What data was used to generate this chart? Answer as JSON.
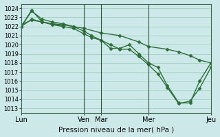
{
  "title": "Pression niveau de la mer( hPa )",
  "bg_color": "#cce8e8",
  "grid_color": "#99ccbb",
  "line_color": "#2d6e3a",
  "ylim": [
    1012.5,
    1024.5
  ],
  "yticks": [
    1013,
    1014,
    1015,
    1016,
    1017,
    1018,
    1019,
    1020,
    1021,
    1022,
    1023,
    1024
  ],
  "xtick_labels": [
    "Lun",
    "Ven",
    "Mar",
    "Mer",
    "Jeu"
  ],
  "xtick_positions": [
    0,
    0.33,
    0.42,
    0.67,
    1.0
  ],
  "lines": [
    {
      "x": [
        0.0,
        0.055,
        0.11,
        0.165,
        0.22,
        0.275,
        0.33,
        0.37,
        0.42,
        0.47,
        0.52,
        0.57,
        0.62,
        0.67,
        0.72,
        0.77,
        0.83,
        0.89,
        0.94,
        1.0
      ],
      "y": [
        1022.0,
        1023.8,
        1022.5,
        1022.2,
        1022.0,
        1021.8,
        1021.2,
        1020.8,
        1020.5,
        1019.6,
        1019.6,
        1020.0,
        1019.0,
        1018.0,
        1017.5,
        1015.5,
        1013.6,
        1013.6,
        1016.0,
        1018.0
      ]
    },
    {
      "x": [
        0.0,
        0.055,
        0.11,
        0.165,
        0.22,
        0.275,
        0.33,
        0.37,
        0.42,
        0.47,
        0.52,
        0.57,
        0.62,
        0.67,
        0.72,
        0.77,
        0.83,
        0.89,
        0.94,
        1.0
      ],
      "y": [
        1022.0,
        1023.7,
        1022.8,
        1022.5,
        1022.3,
        1022.0,
        1021.5,
        1021.0,
        1020.5,
        1020.0,
        1019.5,
        1019.5,
        1018.7,
        1017.8,
        1016.8,
        1015.3,
        1013.5,
        1013.8,
        1015.2,
        1017.5
      ]
    },
    {
      "x": [
        0.0,
        0.055,
        0.11,
        0.165,
        0.22,
        0.275,
        0.33,
        0.42,
        0.52,
        0.62,
        0.67,
        0.77,
        0.83,
        0.89,
        0.94,
        1.0
      ],
      "y": [
        1022.2,
        1022.7,
        1022.5,
        1022.3,
        1022.2,
        1022.0,
        1021.8,
        1021.3,
        1021.0,
        1020.3,
        1019.8,
        1019.5,
        1019.2,
        1018.8,
        1018.3,
        1018.0
      ]
    },
    {
      "x": [
        0.0,
        0.055,
        0.11,
        0.165,
        0.22
      ],
      "y": [
        1022.0,
        1022.8,
        1022.5,
        1022.3,
        1022.1
      ]
    }
  ],
  "vline_positions": [
    0.33,
    0.42,
    0.67
  ],
  "marker": "D",
  "markersize": 2.5,
  "linewidth": 1.0,
  "title_fontsize": 7.5,
  "ytick_fontsize": 6.0,
  "xtick_fontsize": 7.0
}
